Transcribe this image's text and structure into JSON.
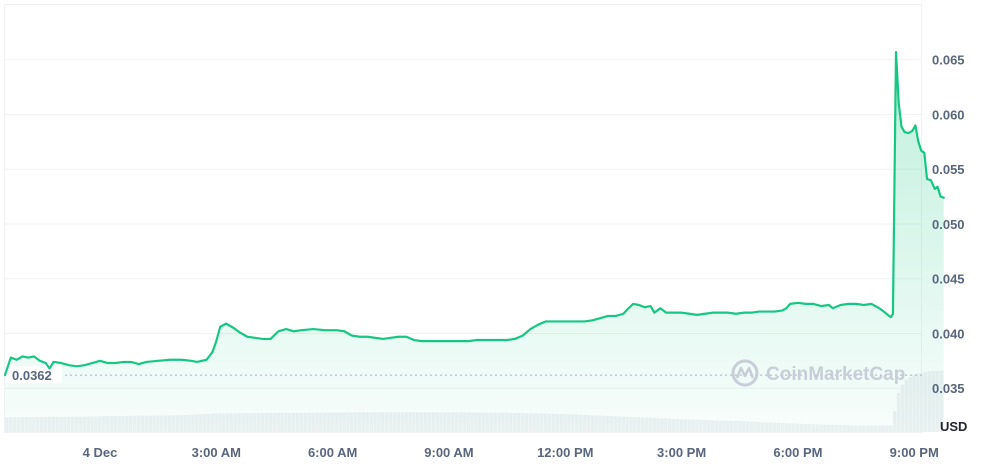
{
  "chart_data": {
    "type": "area",
    "unit_label": "USD",
    "watermark": "CoinMarketCap",
    "reference": {
      "value": 0.0362,
      "label": "0.0362"
    },
    "ylim": [
      0.031,
      0.07
    ],
    "y_ticks": [
      {
        "value": 0.035,
        "label": "0.035"
      },
      {
        "value": 0.04,
        "label": "0.040"
      },
      {
        "value": 0.045,
        "label": "0.045"
      },
      {
        "value": 0.05,
        "label": "0.050"
      },
      {
        "value": 0.055,
        "label": "0.055"
      },
      {
        "value": 0.06,
        "label": "0.060"
      },
      {
        "value": 0.065,
        "label": "0.065"
      }
    ],
    "xlim_hours": [
      -2.45,
      21.2
    ],
    "x_ticks": [
      {
        "hour": 0,
        "label": "4 Dec"
      },
      {
        "hour": 3,
        "label": "3:00 AM"
      },
      {
        "hour": 6,
        "label": "6:00 AM"
      },
      {
        "hour": 9,
        "label": "9:00 AM"
      },
      {
        "hour": 12,
        "label": "12:00 PM"
      },
      {
        "hour": 15,
        "label": "3:00 PM"
      },
      {
        "hour": 18,
        "label": "6:00 PM"
      },
      {
        "hour": 21,
        "label": "9:00 PM"
      }
    ],
    "colors": {
      "line": "#16c784",
      "fill": "#16c784",
      "volume": "#eff1f4",
      "grid": "#f1f2f4"
    },
    "series": [
      {
        "values": [
          [
            -2.45,
            0.0362
          ],
          [
            -2.3,
            0.0378
          ],
          [
            -2.15,
            0.0376
          ],
          [
            -2.0,
            0.0379
          ],
          [
            -1.85,
            0.0378
          ],
          [
            -1.7,
            0.0379
          ],
          [
            -1.55,
            0.0375
          ],
          [
            -1.4,
            0.0373
          ],
          [
            -1.3,
            0.0368
          ],
          [
            -1.2,
            0.0374
          ],
          [
            -1.0,
            0.0373
          ],
          [
            -0.8,
            0.0371
          ],
          [
            -0.6,
            0.037
          ],
          [
            -0.4,
            0.0371
          ],
          [
            -0.2,
            0.0373
          ],
          [
            0.0,
            0.0375
          ],
          [
            0.2,
            0.0373
          ],
          [
            0.4,
            0.0373
          ],
          [
            0.6,
            0.0374
          ],
          [
            0.8,
            0.0374
          ],
          [
            1.0,
            0.0372
          ],
          [
            1.2,
            0.0374
          ],
          [
            1.5,
            0.0375
          ],
          [
            1.8,
            0.0376
          ],
          [
            2.1,
            0.0376
          ],
          [
            2.35,
            0.0375
          ],
          [
            2.5,
            0.0374
          ],
          [
            2.75,
            0.0376
          ],
          [
            2.9,
            0.0383
          ],
          [
            3.0,
            0.0393
          ],
          [
            3.1,
            0.0406
          ],
          [
            3.25,
            0.0409
          ],
          [
            3.45,
            0.0405
          ],
          [
            3.6,
            0.0401
          ],
          [
            3.8,
            0.0397
          ],
          [
            4.0,
            0.0396
          ],
          [
            4.2,
            0.0395
          ],
          [
            4.4,
            0.0395
          ],
          [
            4.6,
            0.0402
          ],
          [
            4.8,
            0.0404
          ],
          [
            5.0,
            0.0402
          ],
          [
            5.2,
            0.0403
          ],
          [
            5.5,
            0.0404
          ],
          [
            5.8,
            0.0403
          ],
          [
            6.1,
            0.0403
          ],
          [
            6.3,
            0.0402
          ],
          [
            6.5,
            0.0398
          ],
          [
            6.7,
            0.0397
          ],
          [
            6.9,
            0.0397
          ],
          [
            7.1,
            0.0396
          ],
          [
            7.3,
            0.0395
          ],
          [
            7.5,
            0.0396
          ],
          [
            7.7,
            0.0397
          ],
          [
            7.9,
            0.0397
          ],
          [
            8.1,
            0.0394
          ],
          [
            8.3,
            0.0393
          ],
          [
            8.5,
            0.0393
          ],
          [
            8.7,
            0.0393
          ],
          [
            8.9,
            0.0393
          ],
          [
            9.1,
            0.0393
          ],
          [
            9.3,
            0.0393
          ],
          [
            9.5,
            0.0393
          ],
          [
            9.7,
            0.0394
          ],
          [
            9.9,
            0.0394
          ],
          [
            10.1,
            0.0394
          ],
          [
            10.3,
            0.0394
          ],
          [
            10.5,
            0.0394
          ],
          [
            10.7,
            0.0395
          ],
          [
            10.9,
            0.0398
          ],
          [
            11.1,
            0.0404
          ],
          [
            11.3,
            0.0408
          ],
          [
            11.5,
            0.0411
          ],
          [
            11.7,
            0.0411
          ],
          [
            11.9,
            0.0411
          ],
          [
            12.1,
            0.0411
          ],
          [
            12.3,
            0.0411
          ],
          [
            12.5,
            0.0411
          ],
          [
            12.7,
            0.0412
          ],
          [
            12.9,
            0.0414
          ],
          [
            13.1,
            0.0416
          ],
          [
            13.3,
            0.0416
          ],
          [
            13.5,
            0.0418
          ],
          [
            13.6,
            0.0422
          ],
          [
            13.75,
            0.0427
          ],
          [
            13.9,
            0.0426
          ],
          [
            14.05,
            0.0424
          ],
          [
            14.2,
            0.0425
          ],
          [
            14.3,
            0.0419
          ],
          [
            14.45,
            0.0423
          ],
          [
            14.6,
            0.0419
          ],
          [
            14.8,
            0.0419
          ],
          [
            15.0,
            0.0419
          ],
          [
            15.2,
            0.0418
          ],
          [
            15.4,
            0.0417
          ],
          [
            15.6,
            0.0418
          ],
          [
            15.8,
            0.0419
          ],
          [
            16.0,
            0.0419
          ],
          [
            16.2,
            0.0419
          ],
          [
            16.4,
            0.0418
          ],
          [
            16.6,
            0.0419
          ],
          [
            16.8,
            0.0419
          ],
          [
            17.0,
            0.042
          ],
          [
            17.2,
            0.042
          ],
          [
            17.4,
            0.042
          ],
          [
            17.6,
            0.0421
          ],
          [
            17.7,
            0.0423
          ],
          [
            17.8,
            0.0427
          ],
          [
            18.0,
            0.0428
          ],
          [
            18.2,
            0.0427
          ],
          [
            18.4,
            0.0427
          ],
          [
            18.6,
            0.0425
          ],
          [
            18.8,
            0.0426
          ],
          [
            18.9,
            0.0423
          ],
          [
            19.1,
            0.0426
          ],
          [
            19.3,
            0.0427
          ],
          [
            19.5,
            0.0427
          ],
          [
            19.7,
            0.0426
          ],
          [
            19.9,
            0.0427
          ],
          [
            20.1,
            0.0423
          ],
          [
            20.25,
            0.0419
          ],
          [
            20.35,
            0.0416
          ],
          [
            20.4,
            0.0415
          ],
          [
            20.45,
            0.0418
          ],
          [
            20.53,
            0.0657
          ],
          [
            20.6,
            0.061
          ],
          [
            20.67,
            0.0589
          ],
          [
            20.75,
            0.0584
          ],
          [
            20.85,
            0.0583
          ],
          [
            20.95,
            0.0585
          ],
          [
            21.03,
            0.059
          ],
          [
            21.1,
            0.0576
          ],
          [
            21.18,
            0.0567
          ],
          [
            21.26,
            0.0565
          ],
          [
            21.33,
            0.0541
          ],
          [
            21.43,
            0.054
          ],
          [
            21.53,
            0.0532
          ],
          [
            21.6,
            0.0534
          ],
          [
            21.68,
            0.0525
          ],
          [
            21.76,
            0.0524
          ]
        ]
      }
    ],
    "volume": [
      [
        -2.45,
        0.23
      ],
      [
        -0.5,
        0.24
      ],
      [
        0.5,
        0.25
      ],
      [
        2.0,
        0.26
      ],
      [
        3.0,
        0.29
      ],
      [
        5.0,
        0.3
      ],
      [
        7.0,
        0.31
      ],
      [
        9.0,
        0.31
      ],
      [
        10.5,
        0.3
      ],
      [
        12.0,
        0.28
      ],
      [
        13.5,
        0.24
      ],
      [
        15.0,
        0.2
      ],
      [
        16.5,
        0.17
      ],
      [
        18.0,
        0.13
      ],
      [
        19.5,
        0.1
      ],
      [
        20.45,
        0.1
      ],
      [
        20.55,
        0.55
      ],
      [
        20.75,
        0.8
      ],
      [
        21.0,
        0.9
      ],
      [
        21.4,
        0.95
      ],
      [
        21.76,
        0.96
      ]
    ]
  }
}
